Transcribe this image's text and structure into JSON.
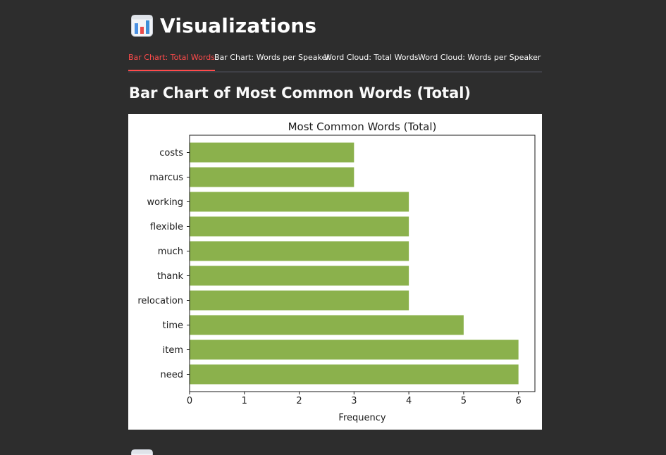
{
  "app": {
    "title": "Visualizations",
    "icon": "bar-chart-icon"
  },
  "tabs": [
    {
      "label": "Bar Chart: Total Words",
      "active": true
    },
    {
      "label": "Bar Chart: Words per Speaker",
      "active": false
    },
    {
      "label": "Word Cloud: Total Words",
      "active": false
    },
    {
      "label": "Word Cloud: Words per Speaker",
      "active": false
    }
  ],
  "section": {
    "heading": "Bar Chart of Most Common Words (Total)"
  },
  "colors": {
    "background": "#2d2d2d",
    "bar": "#8bb14c",
    "active_tab": "#ff4b4b"
  },
  "chart_data": {
    "type": "bar",
    "orientation": "horizontal",
    "title": "Most Common Words (Total)",
    "xlabel": "Frequency",
    "ylabel": "",
    "categories": [
      "costs",
      "marcus",
      "working",
      "flexible",
      "much",
      "thank",
      "relocation",
      "time",
      "item",
      "need"
    ],
    "values": [
      3,
      3,
      4,
      4,
      4,
      4,
      4,
      5,
      6,
      6
    ],
    "xlim": [
      0,
      6.3
    ],
    "xticks": [
      0,
      1,
      2,
      3,
      4,
      5,
      6
    ],
    "grid": false,
    "bar_color": "#8bb14c"
  }
}
